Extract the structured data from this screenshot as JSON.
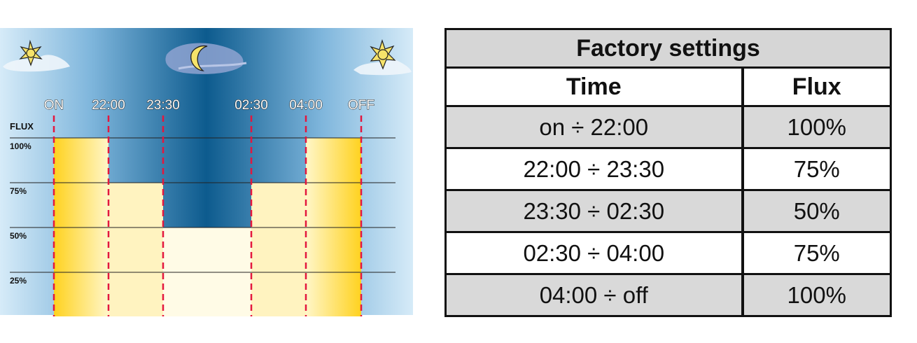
{
  "diagram": {
    "time_labels": [
      "ON",
      "22:00",
      "23:30",
      "02:30",
      "04:00",
      "OFF"
    ],
    "flux_axis_label": "FLUX",
    "flux_levels": [
      "100%",
      "75%",
      "50%",
      "25%"
    ],
    "segments": [
      {
        "from": "ON",
        "to": "22:00",
        "flux_percent": 100
      },
      {
        "from": "22:00",
        "to": "23:30",
        "flux_percent": 75
      },
      {
        "from": "23:30",
        "to": "02:30",
        "flux_percent": 50
      },
      {
        "from": "02:30",
        "to": "04:00",
        "flux_percent": 75
      },
      {
        "from": "04:00",
        "to": "OFF",
        "flux_percent": 100
      }
    ],
    "icons": [
      "sun-icon",
      "moon-icon",
      "sun-icon"
    ],
    "colors": {
      "sky_light": "#cfe6f5",
      "sky_dark": "#0d5b8e",
      "light_yellow": "#ffd21f",
      "light_pale": "#fffbe6",
      "marker": "#e3173e"
    }
  },
  "table": {
    "title": "Factory settings",
    "headers": [
      "Time",
      "Flux"
    ],
    "rows": [
      {
        "time": "on ÷ 22:00",
        "flux": "100%"
      },
      {
        "time": "22:00 ÷ 23:30",
        "flux": "75%"
      },
      {
        "time": "23:30 ÷ 02:30",
        "flux": "50%"
      },
      {
        "time": "02:30 ÷ 04:00",
        "flux": "75%"
      },
      {
        "time": "04:00 ÷ off",
        "flux": "100%"
      }
    ]
  }
}
